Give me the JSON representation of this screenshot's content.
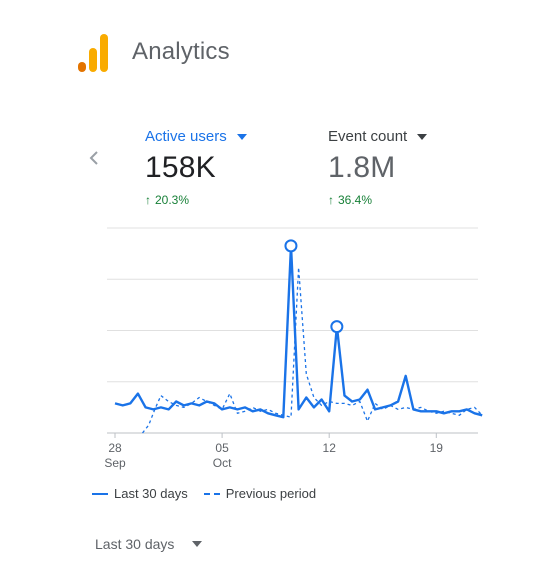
{
  "app": {
    "title": "Analytics",
    "logo_colors": [
      "#e37400",
      "#f9ab00",
      "#f9ab00"
    ]
  },
  "metrics": [
    {
      "label": "Active users",
      "value": "158K",
      "delta": "20.3%",
      "direction": "up",
      "selected": true
    },
    {
      "label": "Event count",
      "value": "1.8M",
      "delta": "36.4%",
      "direction": "up",
      "selected": false
    }
  ],
  "legend": {
    "current": "Last 30 days",
    "previous": "Previous period"
  },
  "date_range": {
    "label": "Last 30 days"
  },
  "colors": {
    "accent": "#1a73e8",
    "positive": "#188038",
    "muted": "#5f6368"
  },
  "chart_data": {
    "type": "line",
    "x_ticks": [
      {
        "day": 0,
        "label": "28",
        "sublabel": "Sep"
      },
      {
        "day": 7,
        "label": "05",
        "sublabel": "Oct"
      },
      {
        "day": 14,
        "label": "12",
        "sublabel": ""
      },
      {
        "day": 21,
        "label": "19",
        "sublabel": ""
      }
    ],
    "grid": true,
    "series": [
      {
        "name": "Last 30 days",
        "style": "solid",
        "x": [
          0,
          0.5,
          1,
          1.5,
          2,
          2.5,
          3,
          3.5,
          4,
          4.5,
          5,
          5.5,
          6,
          6.5,
          7,
          7.5,
          8,
          8.5,
          9,
          9.5,
          10,
          10.5,
          11,
          11.5,
          12,
          12.5,
          13,
          13.5,
          14,
          14.5,
          15,
          15.5,
          16,
          16.5,
          17,
          17.5,
          18,
          18.5,
          19,
          19.5,
          20,
          20.5,
          21,
          21.5,
          22,
          22.5,
          23,
          23.5,
          24
        ],
        "values": [
          15,
          14,
          15,
          20,
          13,
          12,
          13,
          12,
          16,
          14,
          15,
          14,
          16,
          15,
          12,
          13,
          12,
          13,
          11,
          12,
          10,
          9,
          8,
          95,
          12,
          18,
          13,
          17,
          11,
          54,
          19,
          16,
          17,
          22,
          12,
          13,
          14,
          16,
          29,
          12,
          11,
          11,
          11,
          10,
          11,
          11,
          12,
          10,
          9
        ],
        "markers": [
          {
            "x": 11.5,
            "y": 95
          },
          {
            "x": 14.5,
            "y": 54
          }
        ]
      },
      {
        "name": "Previous period",
        "style": "dashed",
        "x": [
          1.8,
          2.2,
          2.6,
          3,
          3.5,
          4,
          4.5,
          5,
          5.5,
          6,
          6.5,
          7,
          7.5,
          8,
          8.5,
          9,
          9.5,
          10,
          10.5,
          11,
          11.5,
          12,
          12.5,
          13,
          13.5,
          14,
          14.5,
          15,
          15.5,
          16,
          16.5,
          17,
          17.5,
          18,
          18.5,
          19,
          19.5,
          20,
          20.5,
          21,
          21.5,
          22,
          22.5,
          23,
          23.5,
          24
        ],
        "values": [
          0,
          4,
          12,
          19,
          16,
          14,
          13,
          15,
          18,
          16,
          14,
          12,
          20,
          10,
          11,
          13,
          11,
          12,
          10,
          9,
          8,
          84,
          30,
          18,
          14,
          16,
          15,
          15,
          14,
          16,
          6,
          15,
          12,
          14,
          12,
          13,
          12,
          13,
          11,
          10,
          11,
          10,
          9,
          12,
          13,
          9
        ]
      }
    ],
    "y_gridline_count": 4
  }
}
